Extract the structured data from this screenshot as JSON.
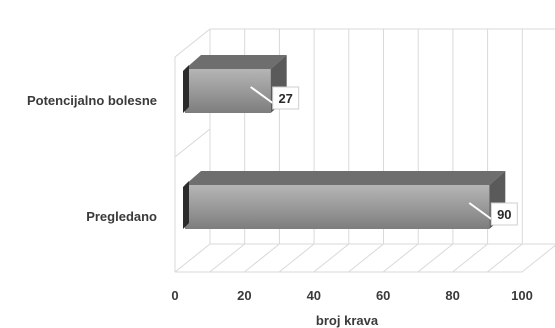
{
  "chart_data": {
    "type": "bar",
    "orientation": "horizontal",
    "style": "3d",
    "categories": [
      "Potencijalno bolesne",
      "Pregledano"
    ],
    "values": [
      27,
      90
    ],
    "xlabel": "broj krava",
    "ylabel": "",
    "xlim": [
      0,
      100
    ],
    "ticks": [
      "0",
      "20",
      "40",
      "60",
      "80",
      "100"
    ],
    "data_labels": [
      "27",
      "90"
    ],
    "grid": true,
    "legend": "none",
    "colors": {
      "bar_front": "#9a9a9a",
      "bar_top": "#6e6e6e",
      "bar_side": "#5a5a5a",
      "grid": "#d9d9d9",
      "text": "#3a3a3a"
    }
  }
}
